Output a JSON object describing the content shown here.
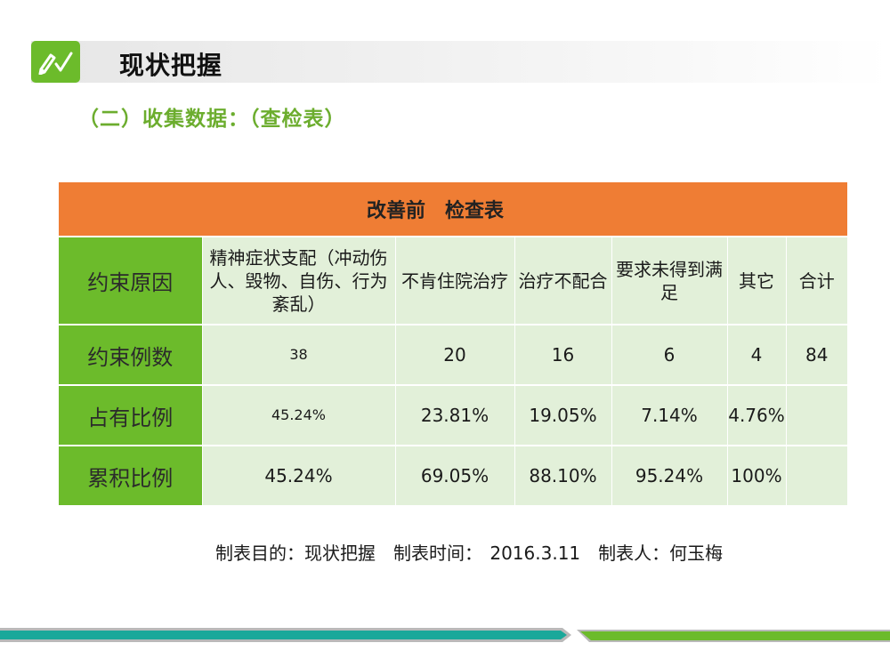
{
  "header": {
    "title": "现状把握",
    "subtitle": "（二）收集数据：（查检表）"
  },
  "table": {
    "title": "改善前　检查表",
    "rows": [
      {
        "label": "约束原因",
        "cells": [
          "精神症状支配（冲动伤人、毁物、自伤、行为紊乱）",
          "不肯住院治疗",
          "治疗不配合",
          "要求未得到满足",
          "其它",
          "合计"
        ]
      },
      {
        "label": "约束例数",
        "cells": [
          "38",
          "20",
          "16",
          "6",
          "4",
          "84"
        ]
      },
      {
        "label": "占有比例",
        "cells": [
          "45.24%",
          "23.81%",
          "19.05%",
          "7.14%",
          "4.76%",
          ""
        ]
      },
      {
        "label": "累积比例",
        "cells": [
          "45.24%",
          "69.05%",
          "88.10%",
          "95.24%",
          "100%",
          ""
        ]
      }
    ]
  },
  "footnote": "制表目的：现状把握　制表时间： 2016.3.11　制表人：何玉梅",
  "colors": {
    "accent_green": "#6cbb2b",
    "header_orange": "#ef7d34",
    "cell_fill": "#e2f0d9",
    "subtitle_green": "#6cad2e",
    "teal_line": "#1aa89a"
  },
  "icons": {
    "title_icon": "pencil-check-icon"
  }
}
